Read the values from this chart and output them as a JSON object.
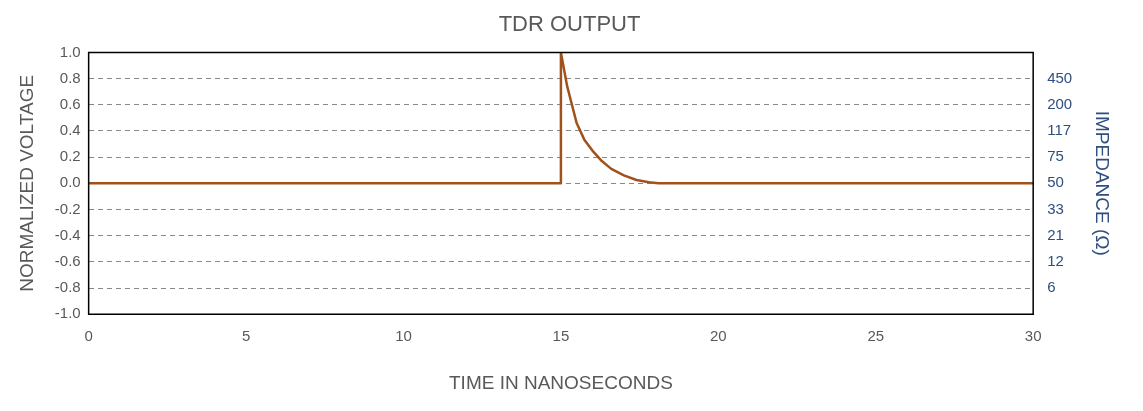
{
  "chart_data": {
    "type": "line",
    "title": "TDR OUTPUT",
    "xlabel": "TIME IN NANOSECONDS",
    "ylabel": "NORMALIZED VOLTAGE",
    "y2label": "IMPEDANCE (Ω)",
    "x": [
      0,
      15,
      15,
      15.1,
      15.2,
      15.35,
      15.5,
      15.75,
      16.0,
      16.3,
      16.6,
      17.0,
      17.4,
      17.8,
      18.1,
      30
    ],
    "series": [
      {
        "color": "#a0521c",
        "values": [
          0,
          0,
          1,
          0.87,
          0.74,
          0.6,
          0.46,
          0.33,
          0.25,
          0.17,
          0.11,
          0.06,
          0.025,
          0.008,
          0,
          0
        ]
      }
    ],
    "xlim": [
      0,
      30
    ],
    "xticks": [
      0,
      5,
      10,
      15,
      20,
      25,
      30
    ],
    "ylim": [
      -1,
      1
    ],
    "yticks": [
      {
        "value": -1,
        "label": "-1.0"
      },
      -0.8,
      -0.6,
      -0.4,
      -0.2,
      {
        "value": 0,
        "label": "0.0"
      },
      0.2,
      0.4,
      0.6,
      0.8,
      {
        "value": 1,
        "label": "1.0"
      }
    ],
    "y2_categories": [
      null,
      "450",
      "200",
      "117",
      "75",
      "50",
      "33",
      "21",
      "12",
      "6",
      null
    ],
    "grid": "y",
    "legend": false,
    "marker": "none",
    "line_style": "solid"
  }
}
